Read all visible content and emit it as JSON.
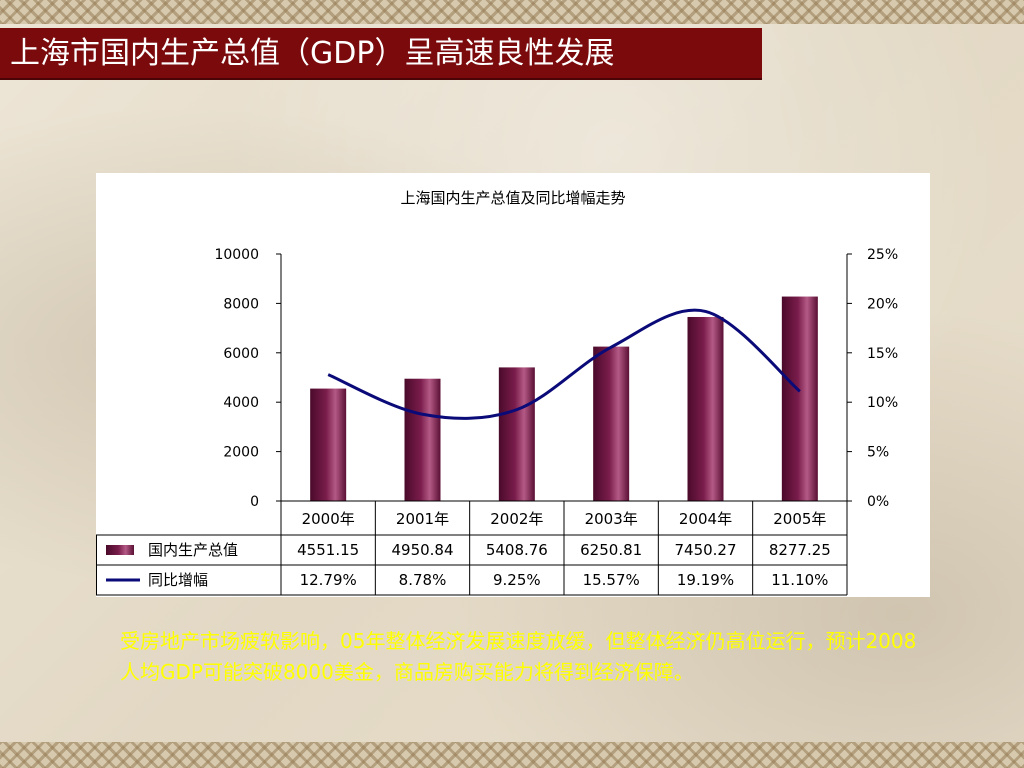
{
  "slide": {
    "title": "上海市国内生产总值（GDP）呈高速良性发展",
    "caption": "受房地产市场疲软影响，05年整体经济发展速度放缓，但整体经济仍高位运行，预计2008人均GDP可能突破8000美金，商品房购买能力将得到经济保障。"
  },
  "colors": {
    "title_bar": "#7a0a0c",
    "bar_fill": "#7a1d4c",
    "line": "#0a0a78",
    "caption_text": "#ffff00"
  },
  "chart_data": {
    "type": "bar",
    "title": "上海国内生产总值及同比增幅走势",
    "categories": [
      "2000年",
      "2001年",
      "2002年",
      "2003年",
      "2004年",
      "2005年"
    ],
    "series": [
      {
        "name": "国内生产总值",
        "type": "bar",
        "axis": "left",
        "values": [
          4551.15,
          4950.84,
          5408.76,
          6250.81,
          7450.27,
          8277.25
        ],
        "labels": [
          "4551.15",
          "4950.84",
          "5408.76",
          "6250.81",
          "7450.27",
          "8277.25"
        ]
      },
      {
        "name": "同比增幅",
        "type": "line",
        "axis": "right",
        "values": [
          12.79,
          8.78,
          9.25,
          15.57,
          19.19,
          11.1
        ],
        "labels": [
          "12.79%",
          "8.78%",
          "9.25%",
          "15.57%",
          "19.19%",
          "11.10%"
        ]
      }
    ],
    "y_left": {
      "ylim": [
        0,
        10000
      ],
      "ticks": [
        "0",
        "2000",
        "4000",
        "6000",
        "8000",
        "10000"
      ]
    },
    "y_right": {
      "ylim": [
        0,
        25
      ],
      "ticks": [
        "0%",
        "5%",
        "10%",
        "15%",
        "20%",
        "25%"
      ]
    },
    "grid": false,
    "legend": "data-table-bottom",
    "data_table": true
  }
}
